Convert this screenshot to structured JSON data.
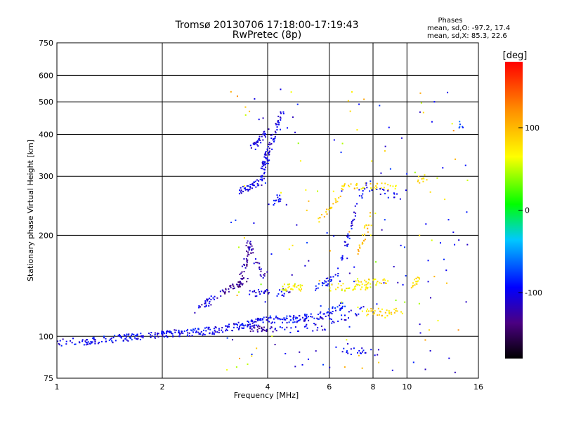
{
  "chart_data": {
    "type": "scatter",
    "title": "Tromsø 20130706 17:18:00-17:19:43",
    "subtitle": "RwPretec (8p)",
    "xlabel": "Frequency [MHz]",
    "ylabel": "Stationary phase Virtual Height [km]",
    "xscale": "log",
    "yscale": "log",
    "xlim": [
      1,
      16
    ],
    "ylim": [
      75,
      750
    ],
    "xticks": [
      1,
      2,
      4,
      6,
      8,
      10,
      16
    ],
    "yticks": [
      75,
      100,
      200,
      300,
      400,
      500,
      600,
      750
    ],
    "grid": true,
    "phases_box": {
      "title": "Phases",
      "line1": "mean, sd,O: -97.2, 17.4",
      "line2": "mean, sd,X:  85.3, 22.6"
    },
    "colorbar": {
      "label": "[deg]",
      "ticks": [
        100,
        0,
        -100
      ],
      "range": [
        -180,
        180
      ],
      "colors": [
        "#000000",
        "#4b0082",
        "#0000ff",
        "#00c8ff",
        "#00ff00",
        "#ffff00",
        "#ff8c00",
        "#ff0000"
      ]
    },
    "series": [
      {
        "segments": [
          {
            "from": [
              1.0,
              96
            ],
            "to": [
              1.3,
              97
            ],
            "n": 40,
            "phase": -100
          },
          {
            "from": [
              1.3,
              97
            ],
            "to": [
              1.7,
              100
            ],
            "n": 50,
            "phase": -95
          },
          {
            "from": [
              1.7,
              100
            ],
            "to": [
              2.2,
              102
            ],
            "n": 55,
            "phase": -100
          },
          {
            "from": [
              2.2,
              102
            ],
            "to": [
              2.8,
              104
            ],
            "n": 55,
            "phase": -95
          },
          {
            "from": [
              2.8,
              104
            ],
            "to": [
              3.4,
              108
            ],
            "n": 45,
            "phase": -100
          },
          {
            "from": [
              3.4,
              108
            ],
            "to": [
              4.0,
              112
            ],
            "n": 45,
            "phase": -100
          },
          {
            "from": [
              4.0,
              112
            ],
            "to": [
              5.0,
              113
            ],
            "n": 45,
            "phase": -95
          },
          {
            "from": [
              5.0,
              113
            ],
            "to": [
              5.9,
              116
            ],
            "n": 35,
            "phase": -100
          },
          {
            "from": [
              5.9,
              116
            ],
            "to": [
              6.6,
              125
            ],
            "n": 25,
            "phase": -90
          },
          {
            "from": [
              3.5,
              106
            ],
            "to": [
              4.0,
              104
            ],
            "n": 25,
            "phase": -130
          },
          {
            "from": [
              4.0,
              104
            ],
            "to": [
              5.8,
              107
            ],
            "n": 30,
            "phase": -105
          },
          {
            "from": [
              2.5,
              120
            ],
            "to": [
              3.0,
              135
            ],
            "n": 30,
            "phase": -110
          },
          {
            "from": [
              3.0,
              135
            ],
            "to": [
              3.5,
              148
            ],
            "n": 35,
            "phase": -130
          },
          {
            "from": [
              3.3,
              140
            ],
            "to": [
              3.6,
              190
            ],
            "n": 40,
            "phase": -130
          },
          {
            "from": [
              3.5,
              190
            ],
            "to": [
              3.9,
              150
            ],
            "n": 30,
            "phase": -120
          },
          {
            "from": [
              3.5,
              135
            ],
            "to": [
              4.6,
              135
            ],
            "n": 35,
            "phase": -105
          },
          {
            "from": [
              3.3,
              270
            ],
            "to": [
              3.8,
              290
            ],
            "n": 35,
            "phase": -100
          },
          {
            "from": [
              3.8,
              280
            ],
            "to": [
              4.0,
              350
            ],
            "n": 45,
            "phase": -100
          },
          {
            "from": [
              4.0,
              350
            ],
            "to": [
              4.4,
              470
            ],
            "n": 45,
            "phase": -105
          },
          {
            "from": [
              3.6,
              360
            ],
            "to": [
              4.0,
              410
            ],
            "n": 35,
            "phase": -105
          },
          {
            "from": [
              4.0,
              250
            ],
            "to": [
              4.4,
              260
            ],
            "n": 15,
            "phase": -90
          },
          {
            "from": [
              4.4,
              140
            ],
            "to": [
              5.0,
              140
            ],
            "n": 30,
            "phase": 70
          },
          {
            "from": [
              5.5,
              140
            ],
            "to": [
              6.2,
              148
            ],
            "n": 25,
            "phase": -90
          },
          {
            "from": [
              6.0,
              140
            ],
            "to": [
              7.8,
              140
            ],
            "n": 35,
            "phase": 70
          },
          {
            "from": [
              7.0,
              145
            ],
            "to": [
              9.0,
              145
            ],
            "n": 30,
            "phase": 75
          },
          {
            "from": [
              7.5,
              118
            ],
            "to": [
              10.0,
              118
            ],
            "n": 35,
            "phase": 85
          },
          {
            "from": [
              6.3,
              150
            ],
            "to": [
              7.5,
              280
            ],
            "n": 40,
            "phase": -100
          },
          {
            "from": [
              7.2,
              180
            ],
            "to": [
              8.0,
              230
            ],
            "n": 25,
            "phase": 95
          },
          {
            "from": [
              6.5,
              280
            ],
            "to": [
              9.5,
              280
            ],
            "n": 40,
            "phase": 80
          },
          {
            "from": [
              7.5,
              280
            ],
            "to": [
              9.5,
              260
            ],
            "n": 20,
            "phase": -100
          },
          {
            "from": [
              10.3,
              140
            ],
            "to": [
              11.0,
              150
            ],
            "n": 15,
            "phase": 80
          },
          {
            "from": [
              10.5,
              290
            ],
            "to": [
              11.5,
              300
            ],
            "n": 10,
            "phase": 80
          },
          {
            "from": [
              5.5,
              220
            ],
            "to": [
              6.5,
              260
            ],
            "n": 20,
            "phase": 90
          },
          {
            "from": [
              6.0,
              110
            ],
            "to": [
              7.5,
              120
            ],
            "n": 20,
            "phase": -100
          },
          {
            "from": [
              6.5,
              90
            ],
            "to": [
              8.5,
              90
            ],
            "n": 20,
            "phase": -100
          },
          {
            "from": [
              14.0,
              400
            ],
            "to": [
              14.5,
              440
            ],
            "n": 6,
            "phase": -70
          }
        ]
      }
    ],
    "scatter_random": {
      "n": 180,
      "xlim": [
        3,
        15
      ],
      "ylim": [
        78,
        560
      ]
    }
  }
}
